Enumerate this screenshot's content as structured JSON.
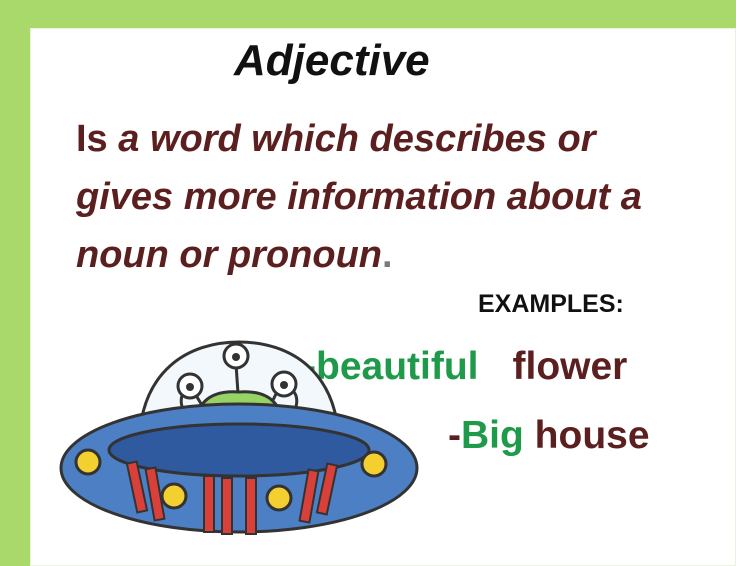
{
  "slide": {
    "title": "Adjective",
    "definition": {
      "lead": "Is ",
      "italic_text": "a word which describes or gives more information about a noun or pronoun",
      "end_mark": "."
    },
    "examples_label": "EXAMPLES:",
    "examples": [
      {
        "prefix": "-",
        "adjective": "beautiful",
        "noun": "flower"
      },
      {
        "prefix": "-",
        "adjective": "Big",
        "noun": "house"
      }
    ]
  },
  "colors": {
    "border": "#a9d86b",
    "definition_text": "#5c1f1f",
    "adjective_text": "#1e9a4a",
    "noun_text": "#5c1f1f"
  },
  "illustration": {
    "icon": "alien-ufo-icon"
  }
}
